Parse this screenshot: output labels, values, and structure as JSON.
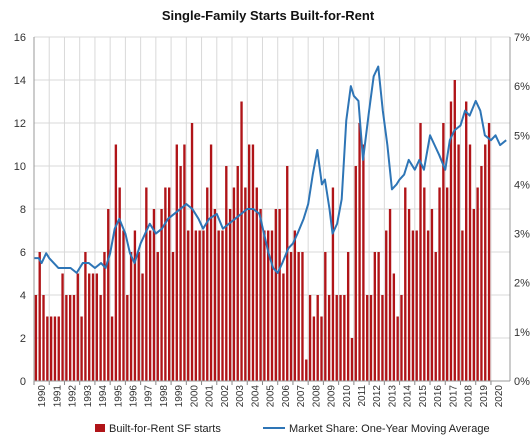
{
  "chart_data": {
    "type": "bar",
    "title": "Single-Family Starts Built-for-Rent",
    "y_left": {
      "range": [
        0,
        16
      ],
      "ticks": [
        "0",
        "2",
        "4",
        "6",
        "8",
        "10",
        "12",
        "14",
        "16"
      ]
    },
    "y_right": {
      "range": [
        0,
        7
      ],
      "ticks": [
        "0%",
        "1%",
        "2%",
        "3%",
        "4%",
        "5%",
        "6%",
        "7%"
      ]
    },
    "x_tick_labels": [
      "1990",
      "1991",
      "1992",
      "1993",
      "1994",
      "1995",
      "1996",
      "1997",
      "1998",
      "1999",
      "2000",
      "2001",
      "2002",
      "2003",
      "2004",
      "2005",
      "2006",
      "2007",
      "2008",
      "2009",
      "2010",
      "2011",
      "2012",
      "2013",
      "2014",
      "2015",
      "2016",
      "2017",
      "2018",
      "2019",
      "2020"
    ],
    "grid": true,
    "legend_position": "bottom",
    "series": [
      {
        "name": "Built-for-Rent SF starts",
        "kind": "bar",
        "axis": "left",
        "color": "#b01418",
        "quarters_per_year": 4,
        "start_year": 1990,
        "values": [
          4,
          6,
          4,
          3,
          3,
          3,
          3,
          5,
          4,
          4,
          4,
          5,
          3,
          6,
          5,
          5,
          5,
          4,
          6,
          8,
          3,
          11,
          9,
          7,
          4,
          6,
          7,
          6,
          5,
          9,
          7,
          8,
          6,
          8,
          9,
          9,
          6,
          11,
          10,
          11,
          7,
          12,
          7,
          7,
          7,
          9,
          11,
          8,
          7,
          7,
          10,
          8,
          9,
          10,
          13,
          9,
          11,
          11,
          9,
          8,
          7,
          7,
          7,
          8,
          8,
          5,
          10,
          6,
          7,
          6,
          6,
          1,
          4,
          3,
          4,
          3,
          6,
          4,
          9,
          4,
          4,
          4,
          6,
          2,
          10,
          12,
          11,
          4,
          4,
          6,
          6,
          4,
          7,
          8,
          5,
          3,
          4,
          9,
          8,
          7,
          7,
          12,
          9,
          7,
          8,
          6,
          9,
          12,
          9,
          13,
          14,
          11,
          7,
          13,
          11,
          8,
          9,
          10,
          11,
          12
        ]
      },
      {
        "name": "Market Share: One-Year Moving Average",
        "kind": "line",
        "axis": "right",
        "color": "#2e75b6",
        "x": [
          1990,
          1990.3,
          1990.5,
          1990.8,
          1991,
          1991.3,
          1991.6,
          1992,
          1992.4,
          1992.8,
          1993.2,
          1993.6,
          1994,
          1994.4,
          1994.7,
          1995,
          1995.3,
          1995.6,
          1996,
          1996.3,
          1996.6,
          1997,
          1997.3,
          1997.6,
          1998,
          1998.4,
          1998.8,
          1999.2,
          1999.6,
          2000,
          2000.4,
          2000.8,
          2001.1,
          2001.5,
          2002,
          2002.4,
          2002.8,
          2003.2,
          2003.6,
          2004,
          2004.4,
          2004.8,
          2005.1,
          2005.4,
          2005.7,
          2006,
          2006.3,
          2006.7,
          2007,
          2007.3,
          2007.7,
          2008,
          2008.3,
          2008.6,
          2008.9,
          2009.1,
          2009.4,
          2009.6,
          2009.9,
          2010.2,
          2010.5,
          2010.8,
          2011,
          2011.3,
          2011.6,
          2012,
          2012.3,
          2012.6,
          2012.9,
          2013.2,
          2013.5,
          2013.8,
          2014,
          2014.3,
          2014.6,
          2015,
          2015.3,
          2015.6,
          2016,
          2016.3,
          2016.6,
          2017,
          2017.3,
          2017.6,
          2018,
          2018.3,
          2018.6,
          2019,
          2019.3,
          2019.6,
          2020,
          2020.3,
          2020.6,
          2021
        ],
        "values": [
          2.5,
          2.5,
          2.4,
          2.6,
          2.5,
          2.4,
          2.3,
          2.3,
          2.3,
          2.2,
          2.4,
          2.4,
          2.3,
          2.4,
          2.3,
          2.6,
          3.1,
          3.3,
          3.0,
          2.6,
          2.4,
          2.8,
          3.0,
          3.2,
          3.0,
          3.1,
          3.3,
          3.4,
          3.5,
          3.6,
          3.5,
          3.3,
          3.1,
          3.3,
          3.4,
          3.1,
          3.2,
          3.3,
          3.4,
          3.5,
          3.5,
          3.4,
          3.0,
          2.6,
          2.3,
          2.2,
          2.4,
          2.7,
          2.8,
          3.0,
          3.3,
          3.6,
          4.2,
          4.7,
          4.0,
          4.1,
          3.5,
          3.0,
          3.2,
          3.7,
          5.3,
          6.0,
          5.8,
          5.7,
          4.5,
          5.5,
          6.2,
          6.4,
          5.5,
          4.8,
          3.9,
          4.0,
          4.1,
          4.2,
          4.5,
          4.3,
          4.5,
          4.3,
          5.0,
          4.8,
          4.6,
          4.3,
          4.9,
          5.1,
          5.2,
          5.5,
          5.4,
          5.7,
          5.5,
          5.0,
          4.9,
          5.0,
          4.8,
          4.9
        ]
      }
    ]
  },
  "legend": {
    "bar_label": "Built-for-Rent SF starts",
    "line_label": "Market Share: One-Year Moving Average"
  }
}
